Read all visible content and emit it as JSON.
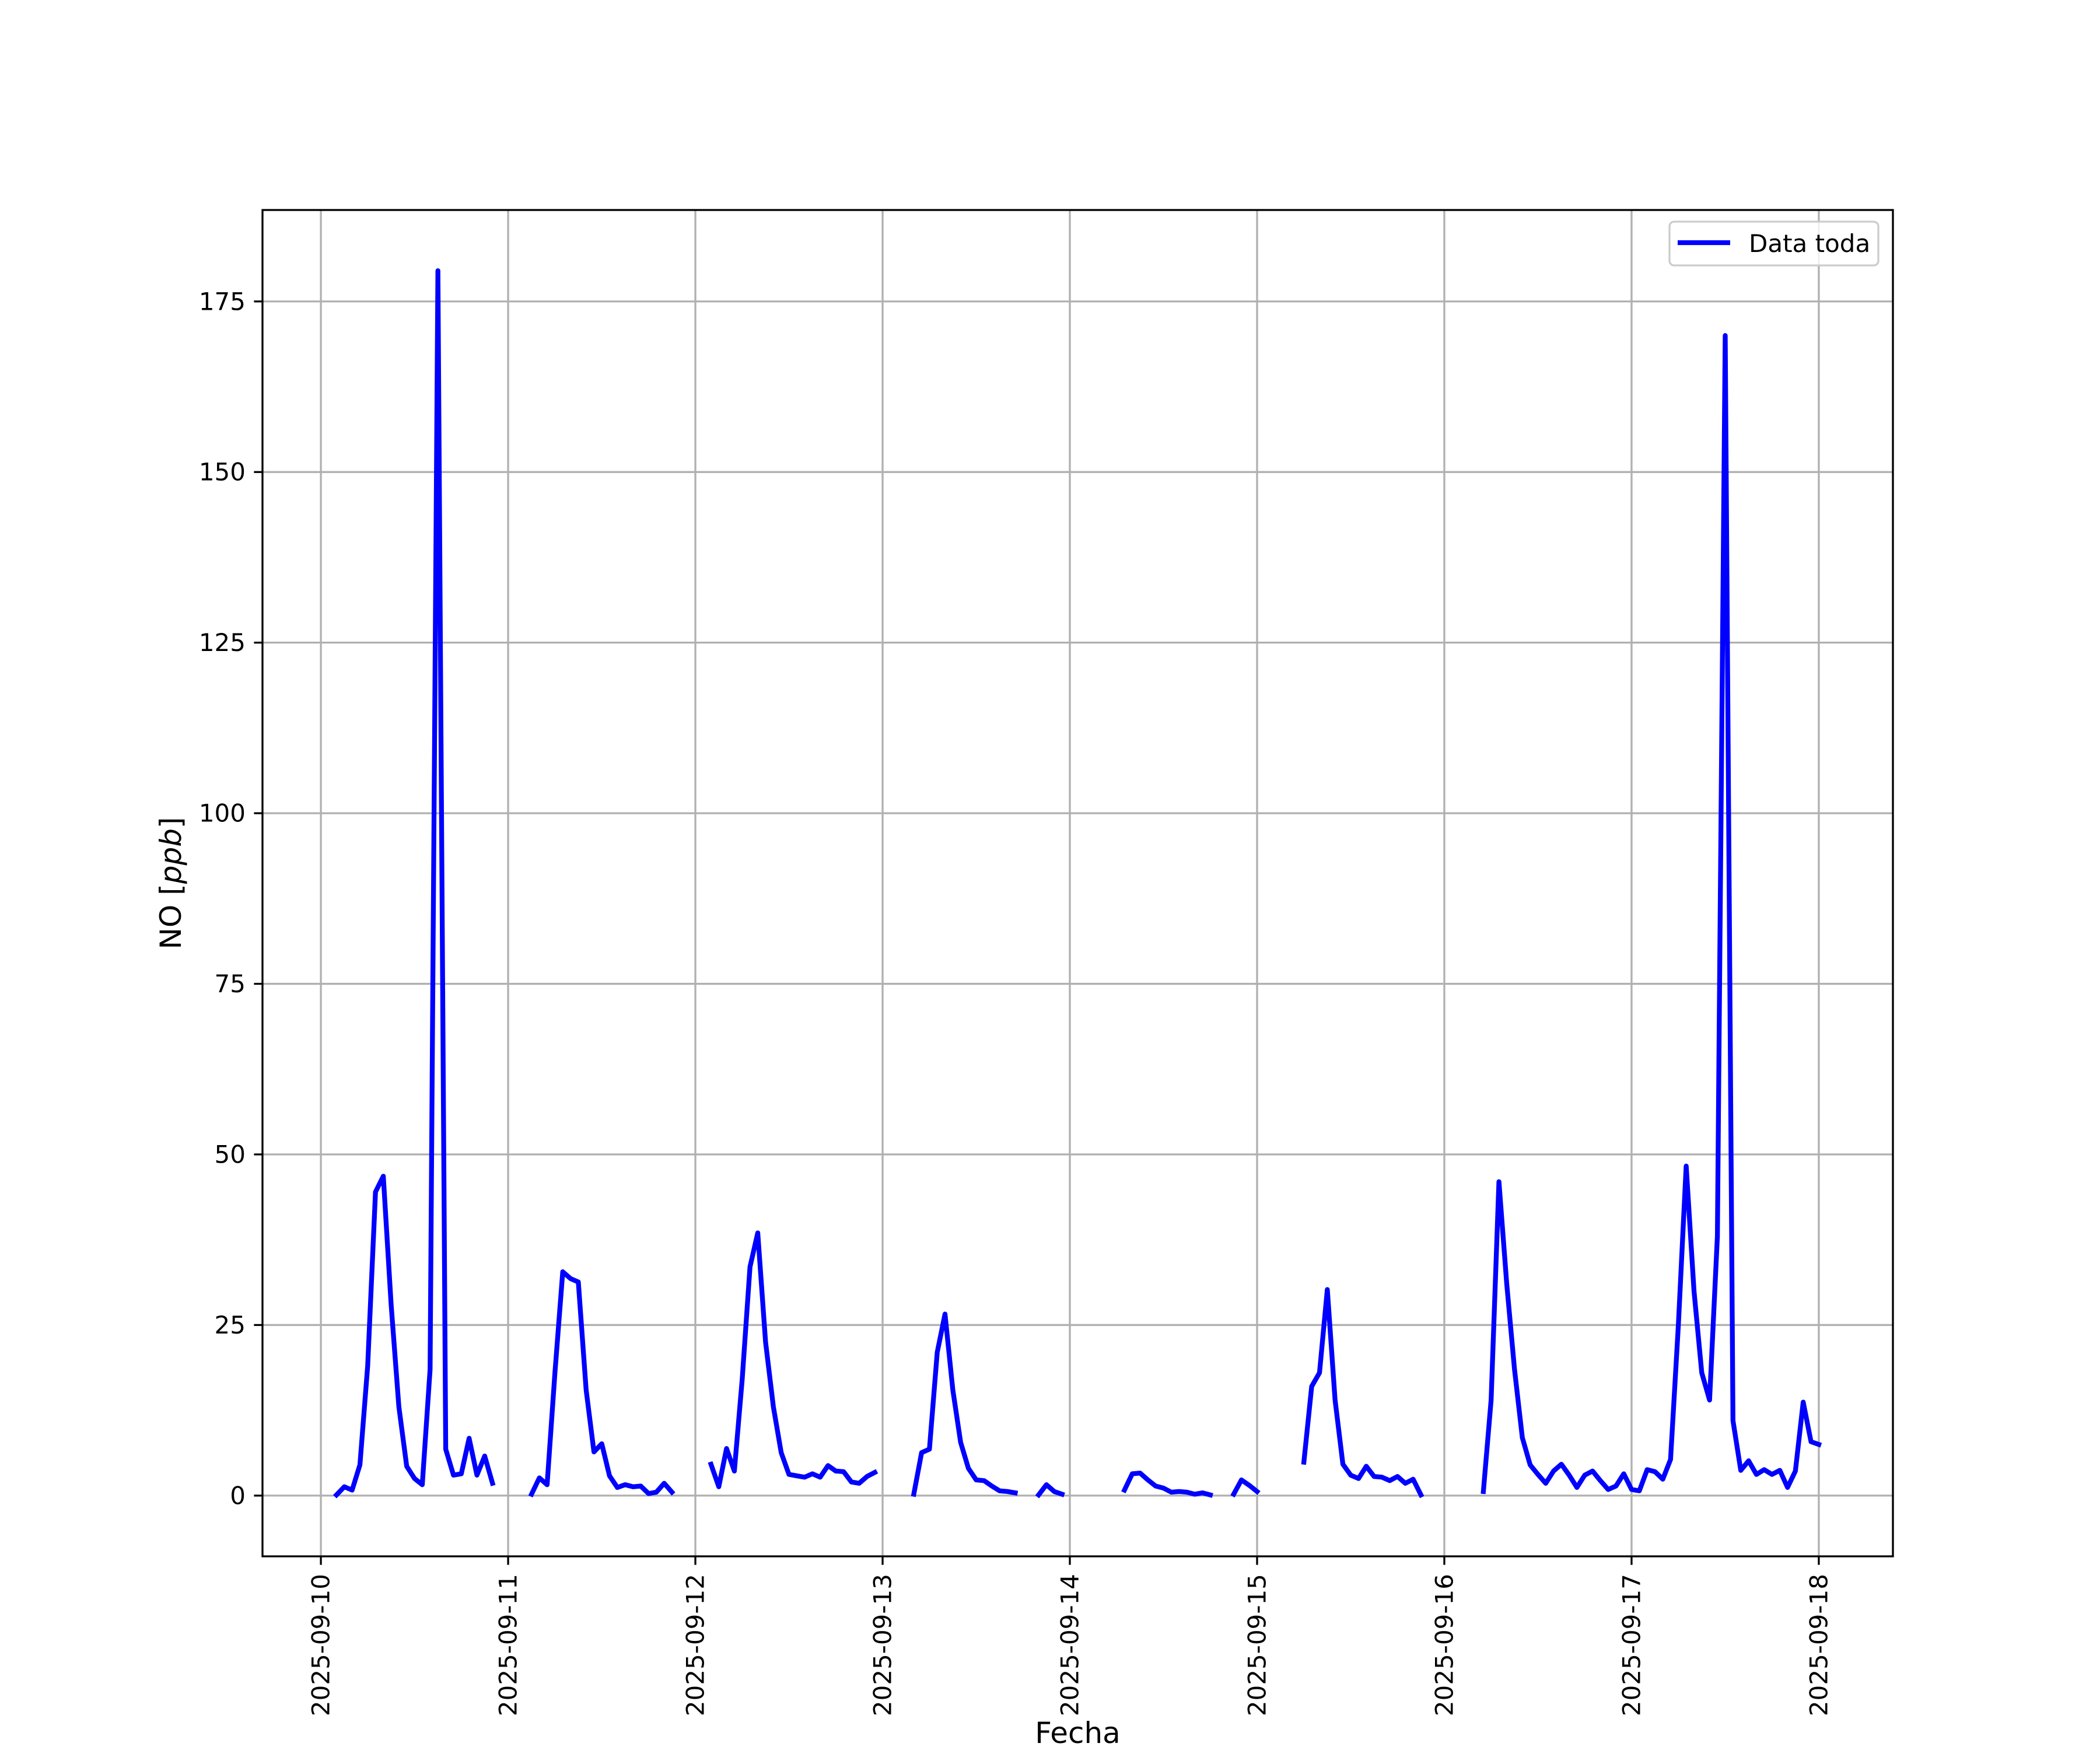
{
  "chart_data": {
    "type": "line",
    "title": "",
    "xlabel": "Fecha",
    "ylabel": "NO [ppb]",
    "ylabel_parts": {
      "plain": "NO [",
      "italic": "ppb",
      "close": "]"
    },
    "xlim": [
      "2025-09-09 16:31",
      "2025-09-18 09:30"
    ],
    "ylim": [
      -8.9,
      188.4
    ],
    "x_ticks": [
      "2025-09-10",
      "2025-09-11",
      "2025-09-12",
      "2025-09-13",
      "2025-09-14",
      "2025-09-15",
      "2025-09-16",
      "2025-09-17",
      "2025-09-18"
    ],
    "y_ticks": [
      0,
      25,
      50,
      75,
      100,
      125,
      150,
      175
    ],
    "grid": true,
    "legend": {
      "placement": "top-right",
      "entries": [
        "Data toda"
      ]
    },
    "x_frequency": "hourly",
    "series": [
      {
        "name": "Data toda",
        "color": "#0000ff",
        "segments": [
          {
            "start": "2025-09-10 02:00",
            "values": [
              0.1,
              1.3,
              0.8,
              4.5,
              19,
              44.5,
              46.8,
              28,
              13,
              4.3,
              2.5,
              1.6,
              18.5,
              179.5,
              6.8,
              3,
              3.2,
              8.4,
              3,
              5.8,
              1.8
            ]
          },
          {
            "start": "2025-09-11 03:00",
            "values": [
              0.2,
              2.6,
              1.6,
              18,
              32.8,
              31.8,
              31.3,
              15.5,
              6.4,
              7.6,
              2.9,
              1.2,
              1.6,
              1.3,
              1.4,
              0.3,
              0.5,
              1.8,
              0.5
            ]
          },
          {
            "start": "2025-09-12 02:00",
            "values": [
              4.6,
              1.3,
              6.9,
              3.6,
              17,
              33.5,
              38.5,
              22.5,
              13,
              6.3,
              3.1,
              2.9,
              2.7,
              3.2,
              2.7,
              4.4,
              3.6,
              3.5,
              2,
              1.8,
              2.8,
              3.4
            ]
          },
          {
            "start": "2025-09-13 04:00",
            "values": [
              0.2,
              6.3,
              6.8,
              21,
              26.6,
              15.5,
              7.8,
              4,
              2.3,
              2.2,
              1.4,
              0.7,
              0.6,
              0.4
            ]
          },
          {
            "start": "2025-09-13 20:00",
            "values": [
              0.1,
              1.6,
              0.6,
              0.2
            ]
          },
          {
            "start": "2025-09-14 07:00",
            "values": [
              0.8,
              3.2,
              3.3,
              2.3,
              1.4,
              1.1,
              0.5,
              0.6,
              0.5,
              0.2,
              0.4,
              0.1
            ]
          },
          {
            "start": "2025-09-14 21:00",
            "values": [
              0.2,
              2.3,
              1.5,
              0.6
            ]
          },
          {
            "start": "2025-09-15 06:00",
            "values": [
              4.9,
              16,
              18,
              30.2,
              14,
              4.6,
              3,
              2.5,
              4.3,
              2.8,
              2.7,
              2.2,
              2.8,
              1.8,
              2.4,
              0.1
            ]
          },
          {
            "start": "2025-09-16 05:00",
            "values": [
              0.6,
              14,
              46,
              31,
              18.5,
              8.5,
              4.5,
              3.1,
              1.8,
              3.6,
              4.6,
              3,
              1.2,
              3,
              3.6,
              2.2,
              0.9,
              1.4,
              3.2,
              0.9,
              0.7,
              3.8,
              3.5,
              2.4,
              5.3,
              25,
              48.3,
              30,
              18,
              14,
              38,
              170,
              11,
              3.7,
              5.1,
              3.1,
              3.8,
              3.1,
              3.7,
              1.2,
              3.6,
              13.7,
              7.9,
              7.5
            ]
          }
        ]
      }
    ]
  }
}
